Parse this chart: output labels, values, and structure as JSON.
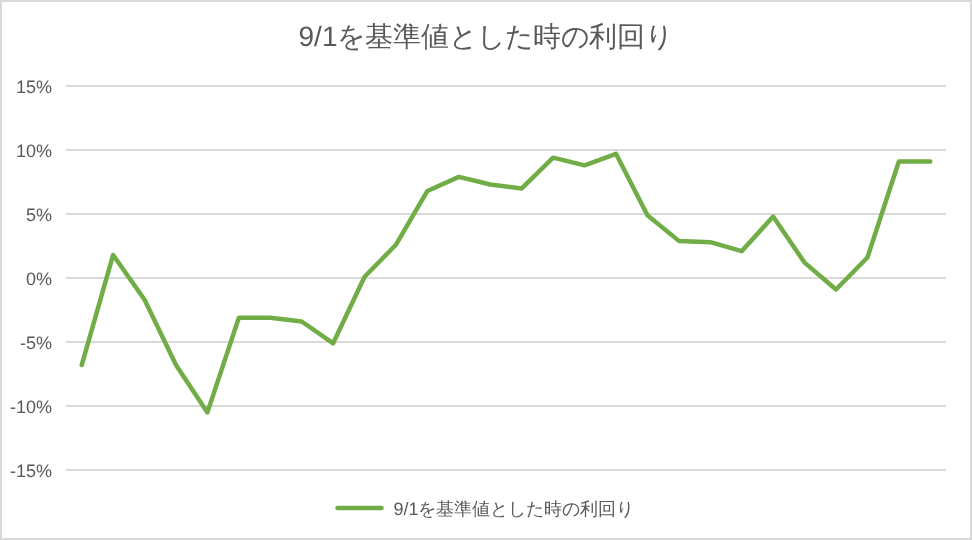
{
  "chart_data": {
    "type": "line",
    "title": "9/1を基準値とした時の利回り",
    "categories": [
      null,
      null,
      null,
      null,
      null,
      null,
      null,
      null,
      null,
      null,
      null,
      null,
      null,
      null,
      null,
      null,
      null,
      null,
      null,
      null,
      null,
      null,
      null,
      null,
      null,
      null,
      null,
      null
    ],
    "series": [
      {
        "name": "9/1を基準値とした時の利回り",
        "color": "#70ad47",
        "values": [
          -6.8,
          1.8,
          -1.7,
          -6.8,
          -10.5,
          -3.1,
          -3.1,
          -3.4,
          -5.1,
          0.1,
          2.6,
          6.8,
          7.9,
          7.3,
          7.0,
          9.4,
          8.8,
          9.7,
          4.9,
          2.9,
          2.8,
          2.1,
          4.8,
          1.2,
          -0.9,
          1.6,
          9.1,
          9.1
        ]
      }
    ],
    "ylim": [
      -15,
      15
    ],
    "yticks": [
      {
        "value": -15,
        "label": "-15%"
      },
      {
        "value": -10,
        "label": "-10%"
      },
      {
        "value": -5,
        "label": "-5%"
      },
      {
        "value": 0,
        "label": "0%"
      },
      {
        "value": 5,
        "label": "5%"
      },
      {
        "value": 10,
        "label": "10%"
      },
      {
        "value": 15,
        "label": "15%"
      }
    ],
    "grid": "y",
    "legend": "bottom",
    "marker": "none",
    "line_style": "solid"
  }
}
